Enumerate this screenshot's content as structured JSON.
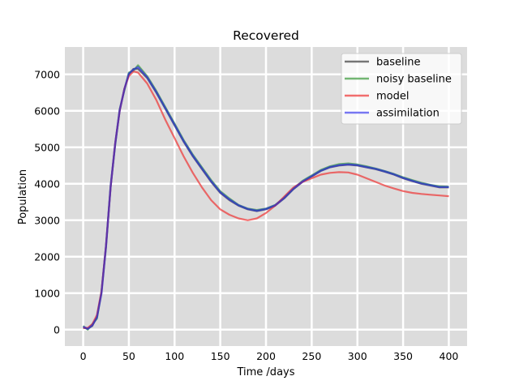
{
  "chart_data": {
    "type": "line",
    "title": "Recovered",
    "xlabel": "Time /days",
    "ylabel": "Population",
    "xlim": [
      -20,
      420
    ],
    "ylim": [
      -450,
      7750
    ],
    "xticks": [
      0,
      50,
      100,
      150,
      200,
      250,
      300,
      350,
      400
    ],
    "yticks": [
      0,
      1000,
      2000,
      3000,
      4000,
      5000,
      6000,
      7000
    ],
    "grid": true,
    "background": "#dcdcdc",
    "legend_position": "top-right",
    "series": [
      {
        "name": "baseline",
        "color": "#555555",
        "opacity": 0.8,
        "x": [
          0,
          5,
          10,
          15,
          20,
          25,
          30,
          35,
          40,
          45,
          50,
          55,
          60,
          70,
          80,
          90,
          100,
          110,
          120,
          130,
          140,
          150,
          160,
          170,
          180,
          190,
          200,
          210,
          220,
          230,
          240,
          250,
          260,
          270,
          280,
          290,
          300,
          310,
          320,
          330,
          340,
          350,
          360,
          370,
          380,
          390,
          400
        ],
        "y": [
          50,
          30,
          100,
          350,
          1000,
          2300,
          3900,
          5100,
          6000,
          6600,
          7000,
          7150,
          7150,
          6900,
          6500,
          6050,
          5600,
          5150,
          4750,
          4400,
          4050,
          3750,
          3550,
          3400,
          3300,
          3250,
          3300,
          3400,
          3600,
          3850,
          4050,
          4200,
          4350,
          4450,
          4500,
          4520,
          4500,
          4450,
          4400,
          4330,
          4250,
          4150,
          4070,
          4000,
          3950,
          3900,
          3900
        ]
      },
      {
        "name": "noisy baseline",
        "color": "#3a9a3a",
        "opacity": 0.7,
        "x": [
          0,
          5,
          10,
          15,
          20,
          25,
          30,
          35,
          40,
          45,
          50,
          55,
          60,
          70,
          80,
          90,
          100,
          110,
          120,
          130,
          140,
          150,
          160,
          170,
          180,
          190,
          200,
          210,
          220,
          230,
          240,
          250,
          260,
          270,
          280,
          290,
          300,
          310,
          320,
          330,
          340,
          350,
          360,
          370,
          380,
          390,
          400
        ],
        "y": [
          100,
          0,
          150,
          300,
          1050,
          2250,
          3950,
          5050,
          6050,
          6550,
          7050,
          7100,
          7250,
          6950,
          6550,
          6100,
          5650,
          5200,
          4800,
          4450,
          4100,
          3800,
          3600,
          3420,
          3320,
          3280,
          3320,
          3420,
          3620,
          3870,
          4080,
          4230,
          4380,
          4480,
          4540,
          4560,
          4530,
          4480,
          4420,
          4350,
          4270,
          4180,
          4100,
          4030,
          3970,
          3930,
          3920
        ]
      },
      {
        "name": "model",
        "color": "#ee3333",
        "opacity": 0.7,
        "x": [
          0,
          5,
          10,
          15,
          20,
          25,
          30,
          35,
          40,
          45,
          50,
          55,
          60,
          70,
          80,
          90,
          100,
          110,
          120,
          130,
          140,
          150,
          160,
          170,
          180,
          190,
          200,
          210,
          220,
          230,
          240,
          250,
          260,
          270,
          280,
          290,
          300,
          310,
          320,
          330,
          340,
          350,
          360,
          370,
          380,
          390,
          400
        ],
        "y": [
          50,
          50,
          150,
          400,
          1050,
          2300,
          3900,
          5100,
          6000,
          6600,
          6950,
          7080,
          7050,
          6750,
          6300,
          5750,
          5250,
          4750,
          4300,
          3900,
          3550,
          3300,
          3150,
          3050,
          3000,
          3050,
          3200,
          3400,
          3650,
          3900,
          4050,
          4150,
          4250,
          4300,
          4320,
          4310,
          4250,
          4150,
          4050,
          3950,
          3870,
          3800,
          3750,
          3720,
          3700,
          3680,
          3660
        ]
      },
      {
        "name": "assimilation",
        "color": "#2222ee",
        "opacity": 0.6,
        "x": [
          0,
          5,
          10,
          15,
          20,
          25,
          30,
          35,
          40,
          45,
          50,
          55,
          60,
          70,
          80,
          90,
          100,
          110,
          120,
          130,
          140,
          150,
          160,
          170,
          180,
          190,
          200,
          210,
          220,
          230,
          240,
          250,
          260,
          270,
          280,
          290,
          300,
          310,
          320,
          330,
          340,
          350,
          360,
          370,
          380,
          390,
          400
        ],
        "y": [
          80,
          20,
          120,
          330,
          1000,
          2280,
          3920,
          5080,
          6020,
          6580,
          7020,
          7130,
          7200,
          6920,
          6520,
          6070,
          5620,
          5170,
          4770,
          4420,
          4070,
          3770,
          3570,
          3410,
          3310,
          3260,
          3310,
          3410,
          3610,
          3860,
          4060,
          4210,
          4360,
          4460,
          4510,
          4530,
          4510,
          4460,
          4410,
          4340,
          4260,
          4160,
          4080,
          4010,
          3960,
          3910,
          3910
        ]
      }
    ]
  }
}
